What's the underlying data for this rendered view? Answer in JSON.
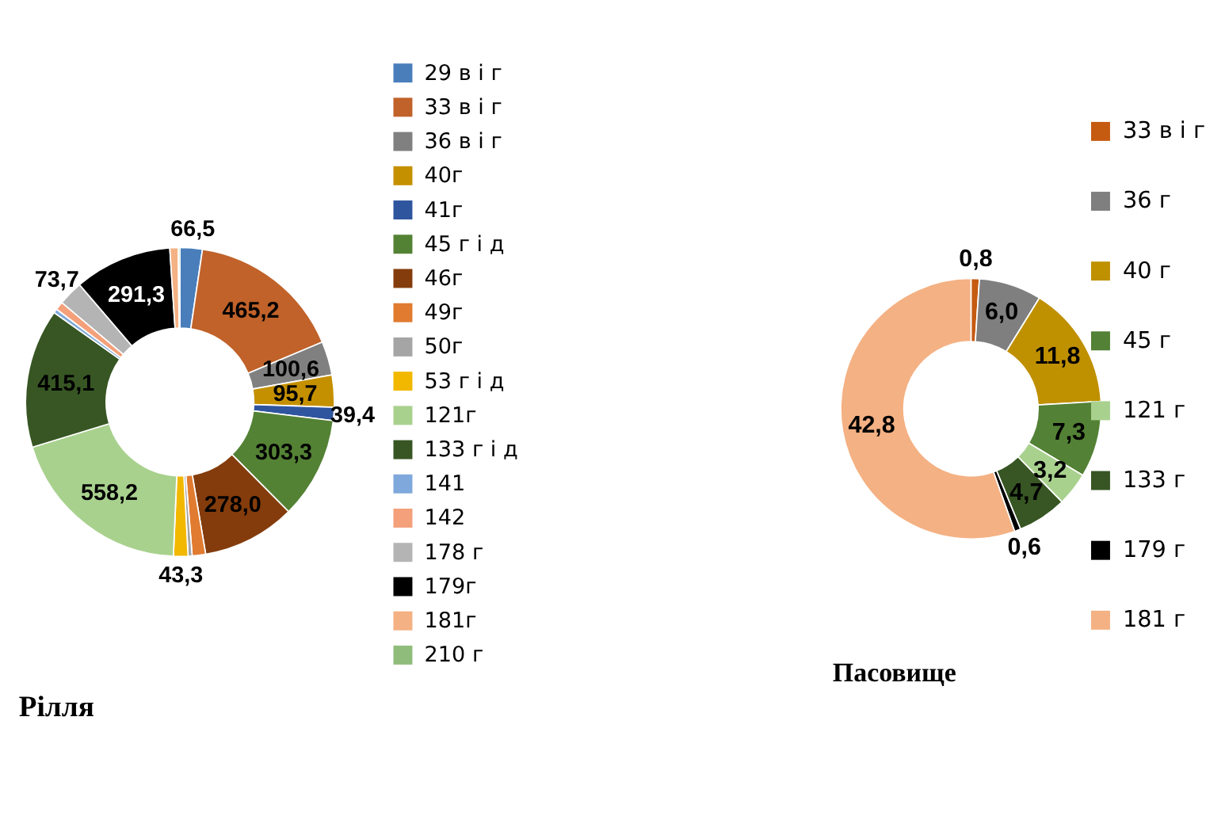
{
  "chart_data": [
    {
      "type": "donut",
      "title": "Рілля",
      "legend": "right",
      "categories": [
        "29 в і г",
        "33 в і г",
        "36 в і г",
        "40г",
        "41г",
        "45 г і д",
        "46г",
        "49г",
        "50г",
        "53 г і д",
        "121г",
        "133 г і д",
        "141",
        "142",
        "178 г",
        "179г",
        "181г",
        "210 г"
      ],
      "values": [
        66.5,
        465.2,
        100.6,
        95.7,
        39.4,
        303.3,
        278.0,
        40,
        12,
        43.3,
        558.2,
        415.1,
        12,
        25,
        73.7,
        291.3,
        25,
        5
      ],
      "value_labels": [
        "66,5",
        "465,2",
        "100,6",
        "95,7",
        "39,4",
        "303,3",
        "278,0",
        null,
        null,
        "43,3",
        "558,2",
        "415,1",
        null,
        null,
        "73,7",
        "291,3",
        null,
        null
      ],
      "colors": [
        "#4a7ebb",
        "#c0622a",
        "#808080",
        "#c59000",
        "#2f559f",
        "#548235",
        "#843c0c",
        "#e07b30",
        "#a5a5a5",
        "#f2b800",
        "#a9d18e",
        "#375623",
        "#7fa9dc",
        "#f4a07a",
        "#b4b4b4",
        "#000000",
        "#f4b183",
        "#8fbc7a"
      ]
    },
    {
      "type": "donut",
      "title": "Пасовище",
      "legend": "right",
      "categories": [
        "33 в і г",
        "36 г",
        "40 г",
        "45 г",
        "121 г",
        "133 г",
        "179 г",
        "181 г"
      ],
      "values": [
        0.8,
        6.0,
        11.8,
        7.3,
        3.2,
        4.7,
        0.6,
        42.8
      ],
      "value_labels": [
        "0,8",
        "6,0",
        "11,8",
        "7,3",
        "3,2",
        "4,7",
        "0,6",
        "42,8"
      ],
      "colors": [
        "#c55a11",
        "#7f7f7f",
        "#bf9000",
        "#538135",
        "#a9d18e",
        "#375623",
        "#000000",
        "#f4b183"
      ]
    }
  ]
}
